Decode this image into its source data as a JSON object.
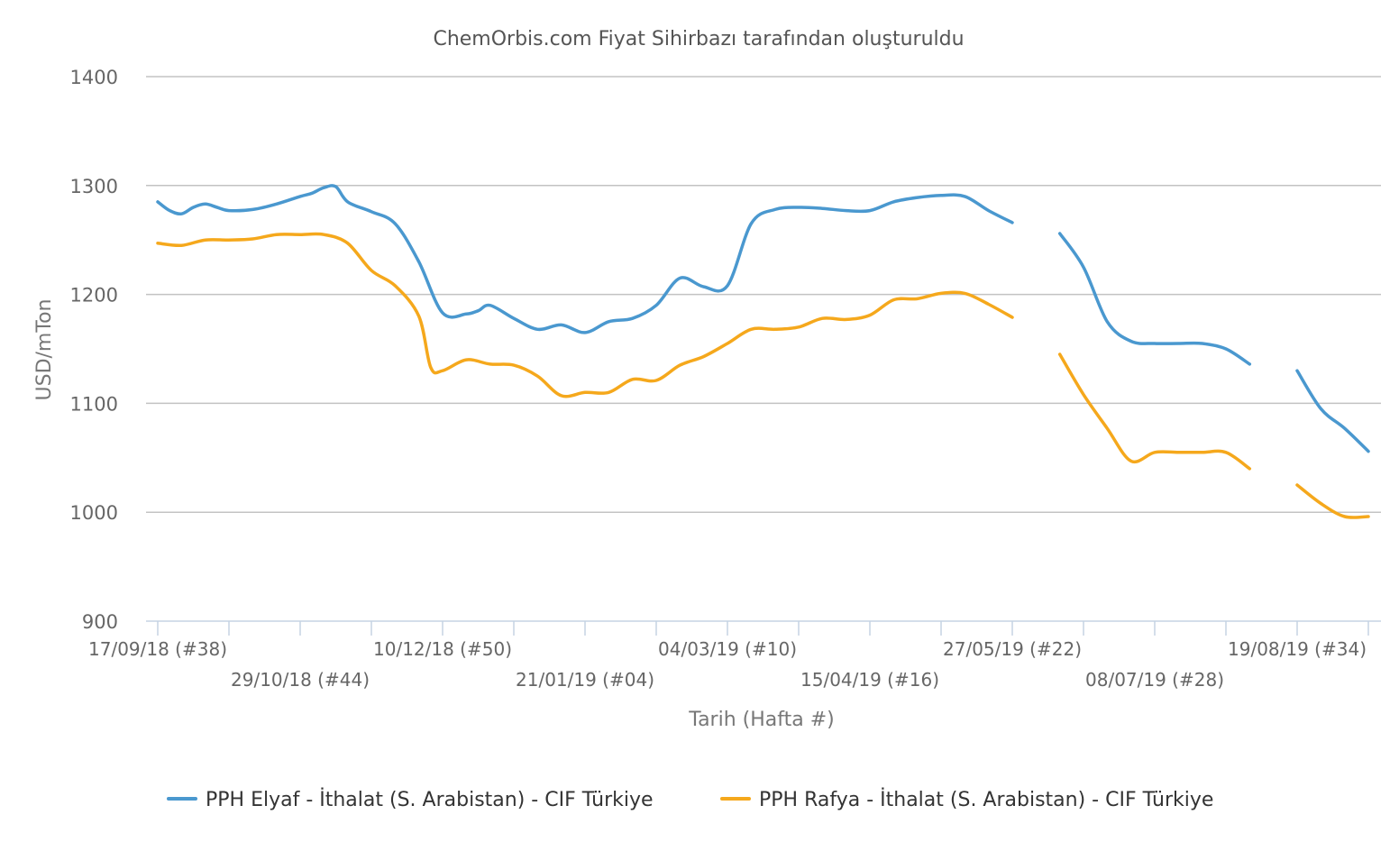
{
  "chart_data": {
    "type": "line",
    "subtitle": "ChemOrbis.com Fiyat Sihirbazı tarafından oluşturuldu",
    "xlabel": "Tarih (Hafta #)",
    "ylabel": "USD/mTon",
    "ylim": [
      900,
      1400
    ],
    "yticks": [
      900,
      1000,
      1100,
      1200,
      1300,
      1400
    ],
    "grid": true,
    "legend_position": "bottom",
    "x_range_weeks": [
      0,
      51
    ],
    "xtick_labels": [
      {
        "week": 0,
        "label": "17/09/18 (#38)"
      },
      {
        "week": 6,
        "label": "29/10/18 (#44)"
      },
      {
        "week": 12,
        "label": "10/12/18 (#50)"
      },
      {
        "week": 18,
        "label": "21/01/19 (#04)"
      },
      {
        "week": 24,
        "label": "04/03/19 (#10)"
      },
      {
        "week": 30,
        "label": "15/04/19 (#16)"
      },
      {
        "week": 36,
        "label": "27/05/19 (#22)"
      },
      {
        "week": 42,
        "label": "08/07/19 (#28)"
      },
      {
        "week": 48,
        "label": "19/08/19 (#34)"
      }
    ],
    "series": [
      {
        "name": "PPH Elyaf - İthalat (S. Arabistan) - CIF Türkiye",
        "color": "#4a98cf",
        "segments": [
          [
            [
              0,
              1285
            ],
            [
              0.5,
              1277
            ],
            [
              1,
              1274
            ],
            [
              1.5,
              1280
            ],
            [
              2,
              1283
            ],
            [
              2.5,
              1280
            ],
            [
              3,
              1277
            ],
            [
              4,
              1278
            ],
            [
              5,
              1283
            ],
            [
              6,
              1290
            ],
            [
              6.5,
              1293
            ],
            [
              7,
              1298
            ],
            [
              7.5,
              1299
            ],
            [
              8,
              1285
            ],
            [
              9,
              1276
            ],
            [
              10,
              1265
            ],
            [
              11,
              1230
            ],
            [
              12,
              1183
            ],
            [
              13,
              1182
            ],
            [
              13.5,
              1185
            ],
            [
              14,
              1190
            ],
            [
              15,
              1178
            ],
            [
              16,
              1168
            ],
            [
              17,
              1172
            ],
            [
              18,
              1165
            ],
            [
              19,
              1175
            ],
            [
              20,
              1178
            ],
            [
              21,
              1190
            ],
            [
              22,
              1215
            ],
            [
              23,
              1207
            ],
            [
              24,
              1208
            ],
            [
              25,
              1265
            ],
            [
              26,
              1278
            ],
            [
              27,
              1280
            ],
            [
              28,
              1279
            ],
            [
              29,
              1277
            ],
            [
              30,
              1277
            ],
            [
              31,
              1285
            ],
            [
              32,
              1289
            ],
            [
              33,
              1291
            ],
            [
              34,
              1290
            ],
            [
              35,
              1277
            ],
            [
              36,
              1266
            ]
          ],
          [
            [
              38,
              1256
            ],
            [
              39,
              1225
            ],
            [
              40,
              1175
            ],
            [
              41,
              1157
            ],
            [
              42,
              1155
            ],
            [
              43,
              1155
            ],
            [
              44,
              1155
            ],
            [
              45,
              1150
            ],
            [
              46,
              1136
            ]
          ],
          [
            [
              48,
              1130
            ],
            [
              49,
              1095
            ],
            [
              50,
              1077
            ],
            [
              51,
              1056
            ]
          ]
        ]
      },
      {
        "name": "PPH Rafya - İthalat (S. Arabistan) - CIF Türkiye",
        "color": "#f5a81c",
        "segments": [
          [
            [
              0,
              1247
            ],
            [
              1,
              1245
            ],
            [
              2,
              1250
            ],
            [
              3,
              1250
            ],
            [
              4,
              1251
            ],
            [
              5,
              1255
            ],
            [
              6,
              1255
            ],
            [
              7,
              1255
            ],
            [
              8,
              1247
            ],
            [
              9,
              1222
            ],
            [
              10,
              1208
            ],
            [
              11,
              1180
            ],
            [
              11.5,
              1133
            ],
            [
              12,
              1130
            ],
            [
              13,
              1140
            ],
            [
              14,
              1136
            ],
            [
              15,
              1135
            ],
            [
              16,
              1125
            ],
            [
              17,
              1107
            ],
            [
              18,
              1110
            ],
            [
              19,
              1110
            ],
            [
              20,
              1122
            ],
            [
              21,
              1121
            ],
            [
              22,
              1135
            ],
            [
              23,
              1143
            ],
            [
              24,
              1155
            ],
            [
              25,
              1168
            ],
            [
              26,
              1168
            ],
            [
              27,
              1170
            ],
            [
              28,
              1178
            ],
            [
              29,
              1177
            ],
            [
              30,
              1181
            ],
            [
              31,
              1195
            ],
            [
              32,
              1196
            ],
            [
              33,
              1201
            ],
            [
              34,
              1201
            ],
            [
              35,
              1191
            ],
            [
              36,
              1179
            ]
          ],
          [
            [
              38,
              1145
            ],
            [
              39,
              1108
            ],
            [
              40,
              1077
            ],
            [
              41,
              1047
            ],
            [
              42,
              1055
            ],
            [
              43,
              1055
            ],
            [
              44,
              1055
            ],
            [
              45,
              1055
            ],
            [
              46,
              1040
            ]
          ],
          [
            [
              48,
              1025
            ],
            [
              49,
              1008
            ],
            [
              50,
              996
            ],
            [
              51,
              996
            ]
          ]
        ]
      }
    ]
  }
}
